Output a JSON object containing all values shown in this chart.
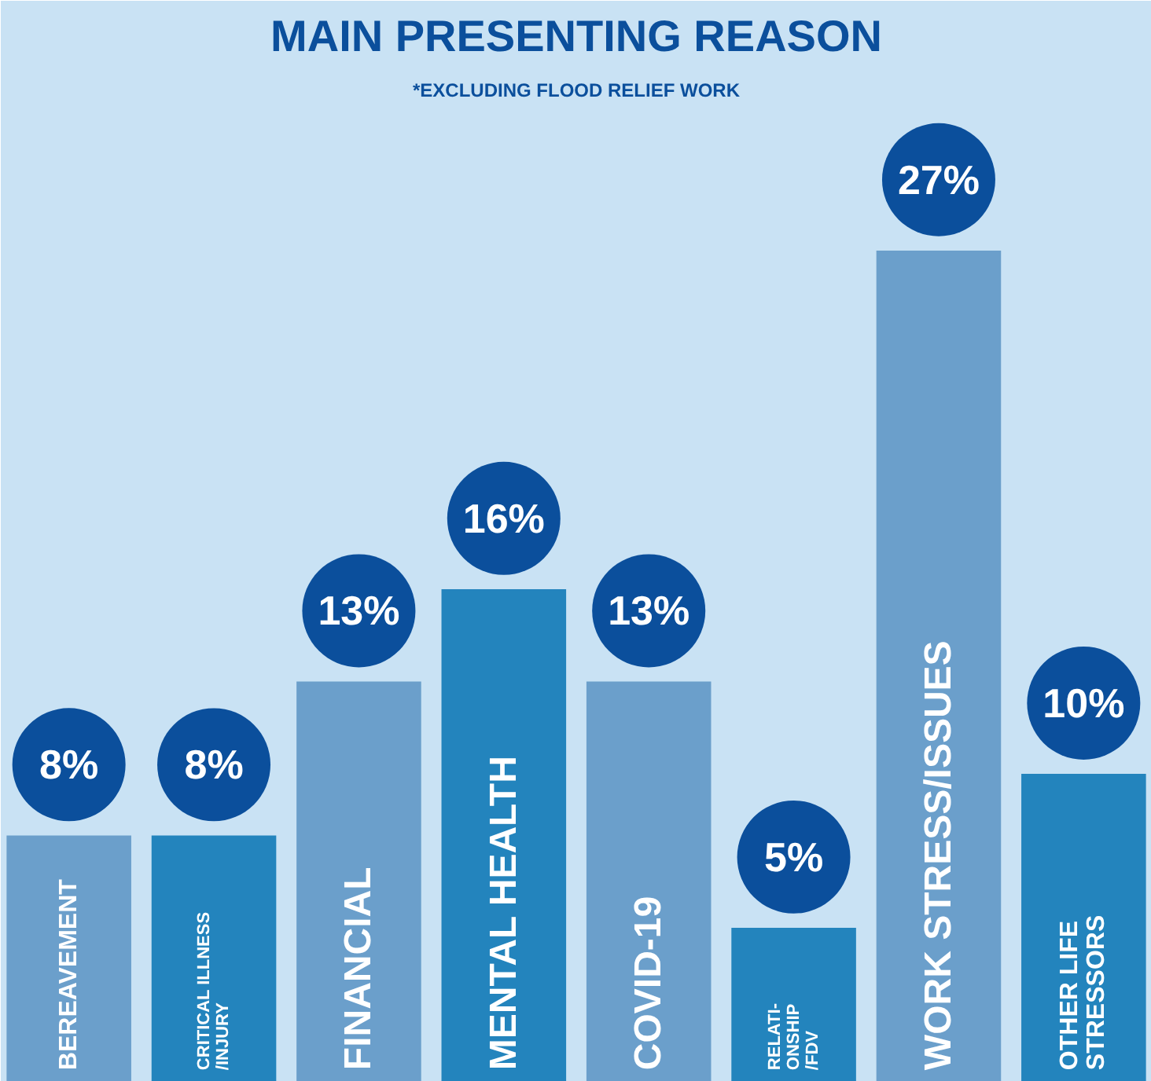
{
  "chart_data": {
    "type": "bar",
    "title": "MAIN PRESENTING REASON",
    "subtitle": "*EXCLUDING FLOOD RELIEF WORK",
    "categories": [
      "BEREAVEMENT",
      "CRITICAL ILLNESS\n/INJURY",
      "FINANCIAL",
      "MENTAL HEALTH",
      "COVID-19",
      "RELATI-\nONSHIP\n/FDV",
      "WORK STRESS/ISSUES",
      "OTHER LIFE\nSTRESSORS"
    ],
    "values": [
      8,
      8,
      13,
      16,
      13,
      5,
      27,
      10
    ],
    "colors": [
      "#6b9fcb",
      "#2384bd",
      "#6b9fcb",
      "#2384bd",
      "#6b9fcb",
      "#2384bd",
      "#6b9fcb",
      "#2384bd"
    ],
    "value_labels": [
      "8%",
      "8%",
      "13%",
      "16%",
      "13%",
      "5%",
      "27%",
      "10%"
    ],
    "grid": false
  }
}
